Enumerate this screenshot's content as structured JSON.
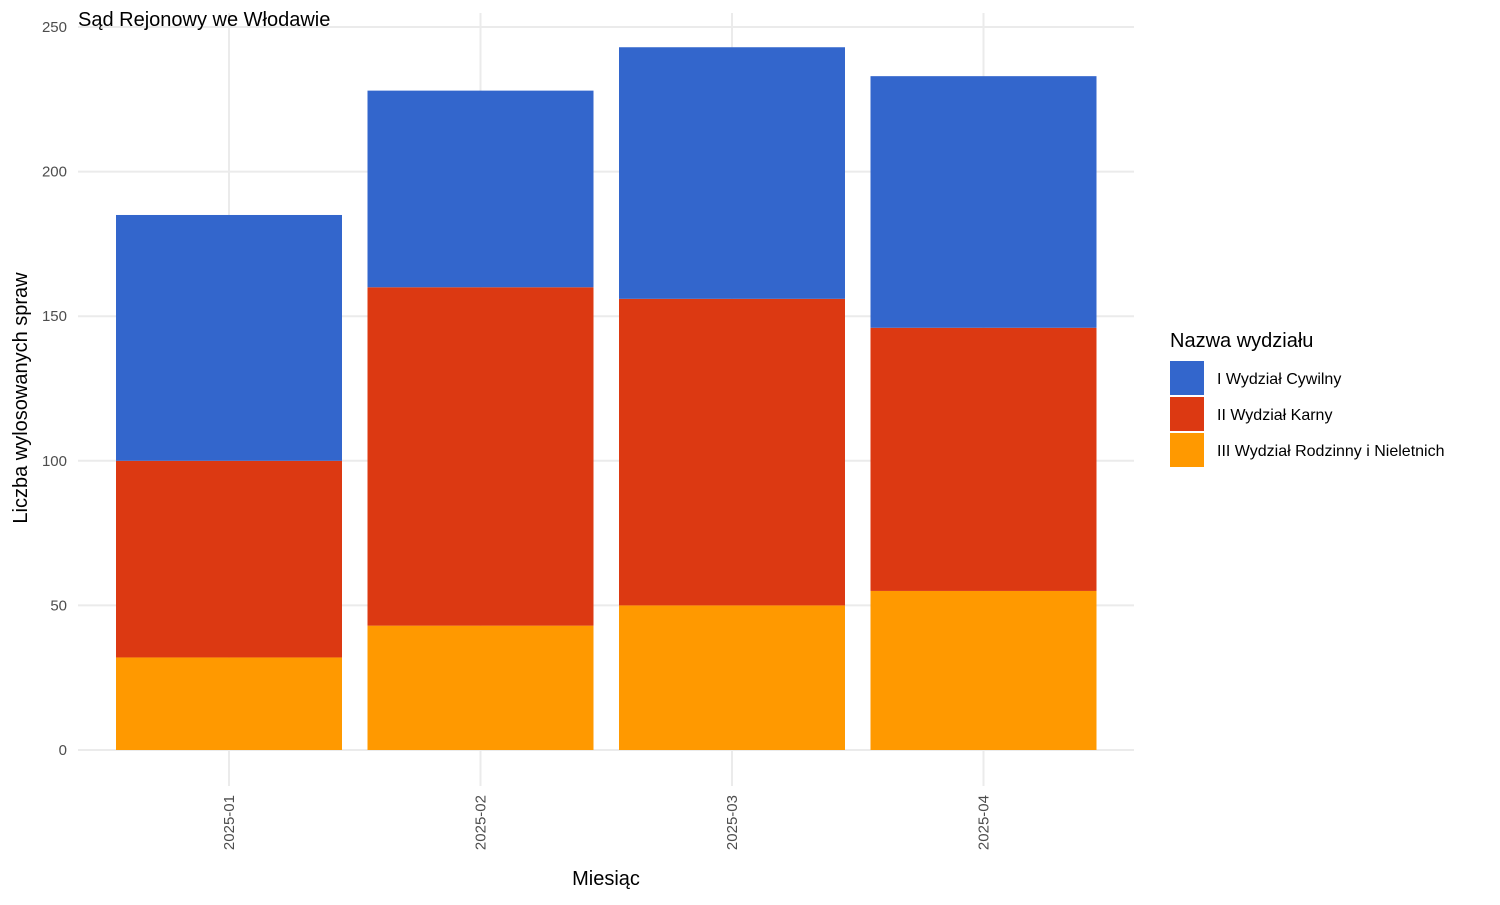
{
  "chart_data": {
    "type": "bar",
    "stacked": true,
    "title": "Sąd Rejonowy we Włodawie",
    "xlabel": "Miesiąc",
    "ylabel": "Liczba wylosowanych spraw",
    "categories": [
      "2025-01",
      "2025-02",
      "2025-03",
      "2025-04"
    ],
    "ylim": [
      0,
      250
    ],
    "yticks": [
      0,
      50,
      100,
      150,
      200,
      250
    ],
    "grid": true,
    "legend": {
      "title": "Nazwa wydziału",
      "position": "right"
    },
    "series": [
      {
        "name": "III Wydział Rodzinny i Nieletnich",
        "color": "#FF9900",
        "values": [
          32,
          43,
          50,
          55
        ]
      },
      {
        "name": "II Wydział Karny",
        "color": "#DC3912",
        "values": [
          68,
          117,
          106,
          91
        ]
      },
      {
        "name": "I Wydział Cywilny",
        "color": "#3366CC",
        "values": [
          85,
          68,
          87,
          87
        ]
      }
    ],
    "legend_order": [
      "I Wydział Cywilny",
      "II Wydział Karny",
      "III Wydział Rodzinny i Nieletnich"
    ]
  }
}
